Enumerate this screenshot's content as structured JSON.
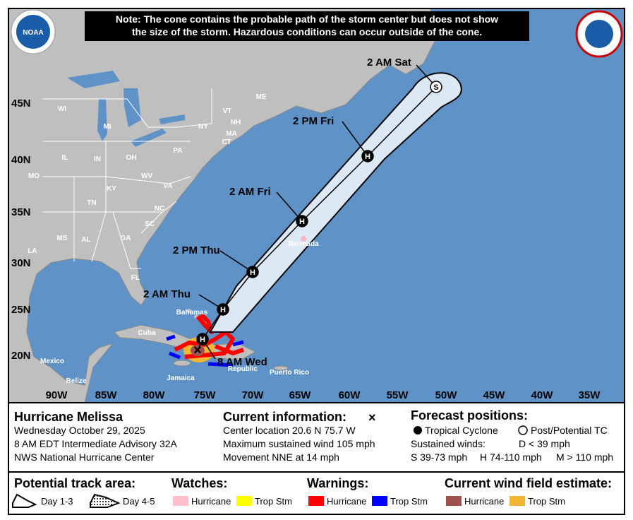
{
  "note": [
    "Note: The cone contains the probable path of the storm center but does not show",
    "the size of the storm. Hazardous conditions can occur outside of the cone."
  ],
  "logo": "NOAA",
  "map": {
    "lat_labels": [
      "45N",
      "40N",
      "35N",
      "30N",
      "25N",
      "20N"
    ],
    "lon_labels": [
      "90W",
      "85W",
      "80W",
      "75W",
      "70W",
      "65W",
      "60W",
      "55W",
      "50W",
      "45W",
      "40W",
      "35W"
    ],
    "places": [
      "WI",
      "MI",
      "NY",
      "ME",
      "VT",
      "NH",
      "MA",
      "CT",
      "PA",
      "IL",
      "IN",
      "OH",
      "WV",
      "VA",
      "MO",
      "KY",
      "TN",
      "NC",
      "SC",
      "MS",
      "AL",
      "GA",
      "LA",
      "FL",
      "Bahamas",
      "Cuba",
      "Mexico",
      "Belize",
      "Jamaica",
      "Bermuda",
      "Republic",
      "Puerto Rico"
    ],
    "forecast_points": [
      {
        "label": "8 AM Wed",
        "marker": "H"
      },
      {
        "label": "2 AM Thu",
        "marker": "H"
      },
      {
        "label": "2 PM Thu",
        "marker": "H"
      },
      {
        "label": "2 AM Fri",
        "marker": "H"
      },
      {
        "label": "2 PM Fri",
        "marker": "H"
      },
      {
        "label": "2 AM Sat",
        "marker": "S"
      }
    ]
  },
  "storm": {
    "name": "Hurricane Melissa",
    "date": "Wednesday October 29, 2025",
    "advisory": "8 AM EDT Intermediate Advisory 32A",
    "center": "NWS National Hurricane Center"
  },
  "current": {
    "title": "Current information: ",
    "symbol": "×",
    "lines": [
      "Center location 20.6 N 75.7 W",
      "Maximum sustained wind 105 mph",
      "Movement NNE at 14 mph"
    ]
  },
  "forecast": {
    "title": "Forecast positions:",
    "tropical": "Tropical Cyclone",
    "post": "Post/Potential TC",
    "winds_title": "Sustained winds:",
    "d": "D < 39 mph",
    "s": "S 39-73 mph",
    "h": "H 74-110 mph",
    "m": "M > 110 mph"
  },
  "legend": {
    "track_title": "Potential track area:",
    "day13": "Day 1-3",
    "day45": "Day 4-5",
    "watches_title": "Watches:",
    "watch_hurricane": "Hurricane",
    "watch_ts": "Trop Stm",
    "warnings_title": "Warnings:",
    "warn_hurricane": "Hurricane",
    "warn_ts": "Trop Stm",
    "wind_title": "Current wind field estimate:",
    "wind_hurricane": "Hurricane",
    "wind_ts": "Trop Stm"
  }
}
